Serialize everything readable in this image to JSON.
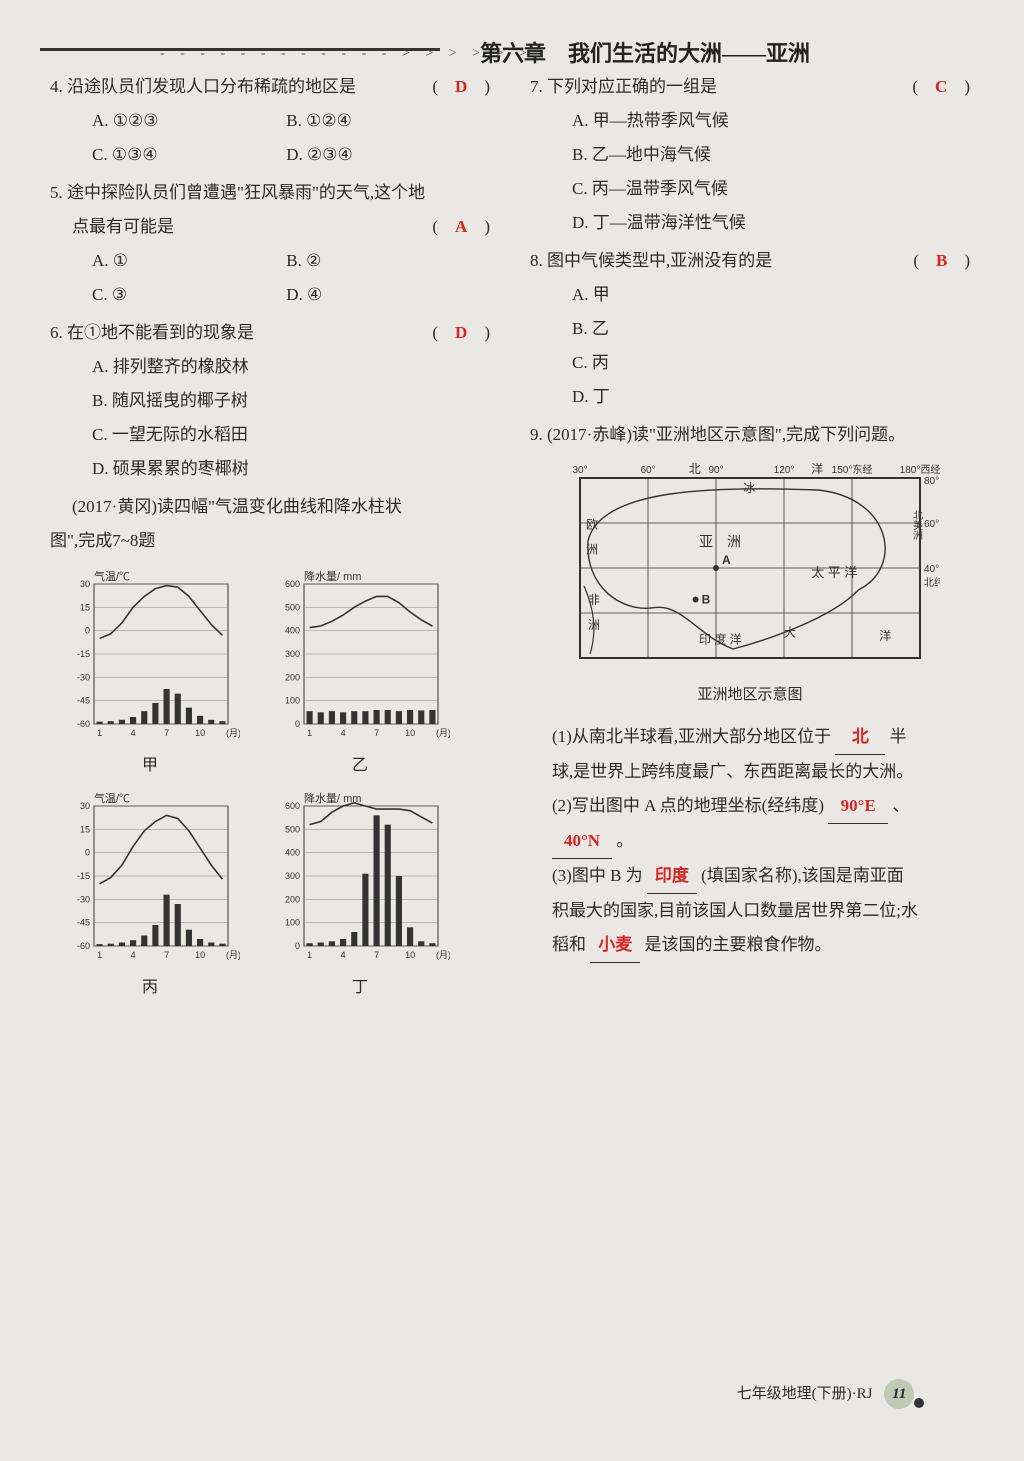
{
  "header": {
    "dashes": "- - - - - - - - - - - - > > > > > >",
    "chapter": "第六章　我们生活的大洲——亚洲"
  },
  "left": {
    "q4": {
      "stem": "4. 沿途队员们发现人口分布稀疏的地区是",
      "ans": "D",
      "A": "A. ①②③",
      "B": "B. ①②④",
      "C": "C. ①③④",
      "D": "D. ②③④"
    },
    "q5": {
      "stem1": "5. 途中探险队员们曾遭遇\"狂风暴雨\"的天气,这个地",
      "stem2": "点最有可能是",
      "ans": "A",
      "A": "A. ①",
      "B": "B. ②",
      "C": "C. ③",
      "D": "D. ④"
    },
    "q6": {
      "stem": "6. 在①地不能看到的现象是",
      "ans": "D",
      "A": "A. 排列整齐的橡胶林",
      "B": "B. 随风摇曳的椰子树",
      "C": "C. 一望无际的水稻田",
      "D": "D. 硕果累累的枣椰树"
    },
    "intro78": {
      "l1": "(2017·黄冈)读四幅\"气温变化曲线和降水柱状",
      "l2": "图\",完成7~8题"
    },
    "charts": {
      "tempLabel": "气温/℃",
      "precipLabel": "降水量/ mm",
      "xLabel": "(月)",
      "months": [
        1,
        4,
        7,
        10
      ],
      "tempTicks": [
        30,
        15,
        0,
        -15,
        -30,
        -45,
        -60
      ],
      "precipTicks": [
        600,
        500,
        400,
        300,
        200,
        100,
        0
      ],
      "jia": {
        "name": "甲",
        "temp": [
          -5,
          -2,
          5,
          15,
          22,
          27,
          29,
          28,
          22,
          13,
          4,
          -3
        ],
        "precip": [
          10,
          12,
          18,
          30,
          55,
          90,
          150,
          130,
          70,
          35,
          18,
          12
        ]
      },
      "yi": {
        "name": "乙",
        "temp": [
          2,
          3,
          6,
          10,
          15,
          19,
          22,
          22,
          18,
          12,
          7,
          3
        ],
        "precip": [
          55,
          50,
          55,
          50,
          55,
          55,
          60,
          60,
          55,
          60,
          58,
          60
        ]
      },
      "bing": {
        "name": "丙",
        "temp": [
          -20,
          -16,
          -8,
          4,
          14,
          20,
          24,
          22,
          14,
          3,
          -8,
          -17
        ],
        "precip": [
          8,
          10,
          15,
          25,
          45,
          90,
          220,
          180,
          70,
          30,
          15,
          10
        ]
      },
      "ding": {
        "name": "丁",
        "temp": [
          18,
          20,
          26,
          30,
          32,
          30,
          28,
          28,
          28,
          27,
          23,
          19
        ],
        "precip": [
          12,
          15,
          20,
          30,
          60,
          310,
          560,
          520,
          300,
          80,
          20,
          12
        ]
      }
    }
  },
  "right": {
    "q7": {
      "stem": "7. 下列对应正确的一组是",
      "ans": "C",
      "A": "A. 甲—热带季风气候",
      "B": "B. 乙—地中海气候",
      "C": "C. 丙—温带季风气候",
      "D": "D. 丁—温带海洋性气候"
    },
    "q8": {
      "stem": "8. 图中气候类型中,亚洲没有的是",
      "ans": "B",
      "A": "A. 甲",
      "B": "B. 乙",
      "C": "C. 丙",
      "D": "D. 丁"
    },
    "q9": {
      "stem": "9. (2017·赤峰)读\"亚洲地区示意图\",完成下列问题。",
      "mapCaption": "亚洲地区示意图",
      "map": {
        "lonLabels": [
          "30°",
          "60°",
          "90°",
          "120°",
          "150°东经",
          "180°西经"
        ],
        "latLabels": [
          "80°",
          "60°",
          "40°",
          "北纬"
        ],
        "texts": {
          "north": "北",
          "arctic": "冰",
          "oceanSuffix": "洋",
          "europe": "欧",
          "continent": "洲",
          "asia": "亚　洲",
          "namerica": "北美洲",
          "africa": "非",
          "pacific": "太 平 洋",
          "indian": "印 度 洋",
          "big": "大",
          "A": "A",
          "B": "B"
        }
      },
      "p1a": "(1)从南北半球看,亚洲大部分地区位于",
      "p1blank": "北",
      "p1b": "半",
      "p1c": "球,是世界上跨纬度最广、东西距离最长的大洲。",
      "p2a": "(2)写出图中 A 点的地理坐标(经纬度)",
      "p2blank1": "90°E",
      "p2sep": "、",
      "p2blank2": "40°N",
      "p2end": "。",
      "p3a": "(3)图中 B 为",
      "p3blank1": "印度",
      "p3b": "(填国家名称),该国是南亚面",
      "p3c": "积最大的国家,目前该国人口数量居世界第二位;水",
      "p3d": "稻和",
      "p3blank2": "小麦",
      "p3e": "是该国的主要粮食作物。"
    }
  },
  "footer": {
    "text": "七年级地理(下册)·RJ",
    "page": "11"
  },
  "style": {
    "axisColor": "#333",
    "gridColor": "#888",
    "barColor": "#333",
    "lineColor": "#333",
    "bg": "#eae8e4"
  }
}
